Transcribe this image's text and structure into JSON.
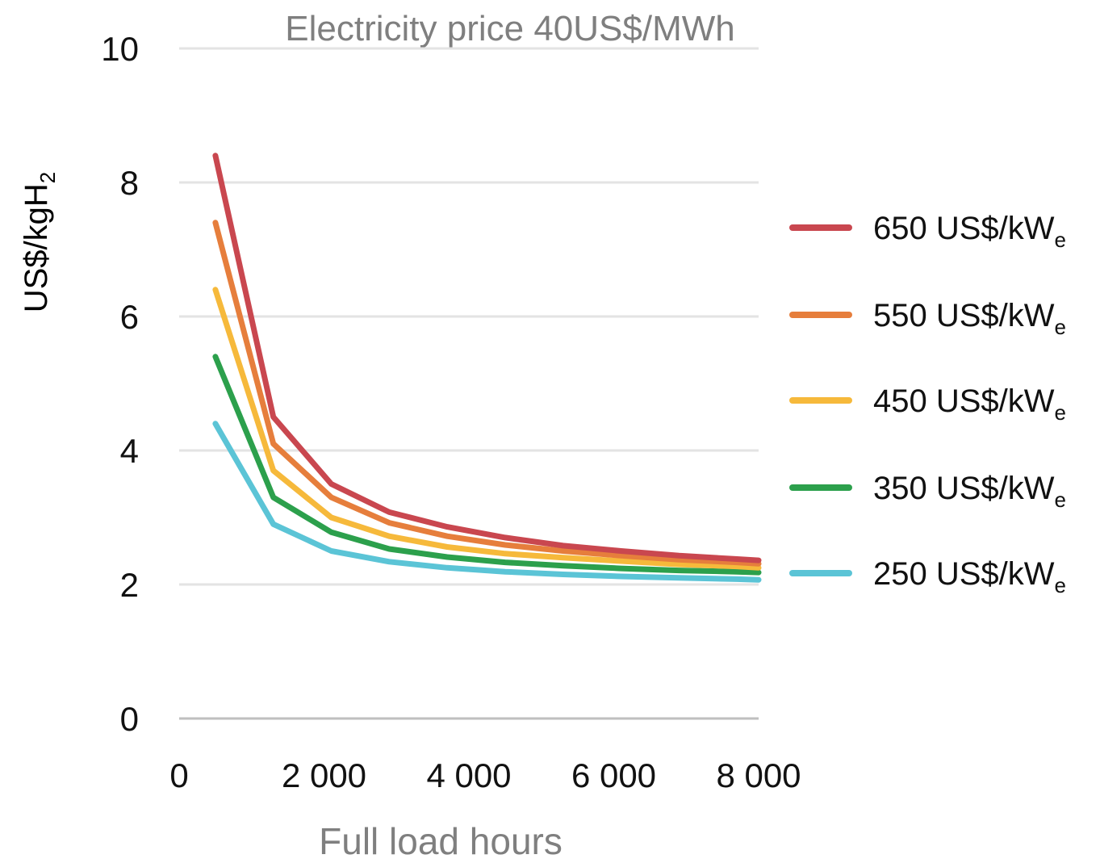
{
  "chart_data": {
    "type": "line",
    "title": "Electricity price 40US$/MWh",
    "xlabel": "Full load hours",
    "ylabel": "US$/kgH",
    "ylabel_sub": "2",
    "xlim": [
      0,
      8000
    ],
    "ylim": [
      0,
      10
    ],
    "xticks": [
      0,
      2000,
      4000,
      6000,
      8000
    ],
    "xtick_labels": [
      "0",
      "2 000",
      "4 000",
      "6 000",
      "8 000"
    ],
    "yticks": [
      0,
      2,
      4,
      6,
      8,
      10
    ],
    "ytick_labels": [
      "0",
      "2",
      "4",
      "6",
      "8",
      "10"
    ],
    "grid": true,
    "legend_position": "right",
    "x": [
      500,
      1300,
      2100,
      2900,
      3700,
      4500,
      5300,
      6100,
      6900,
      7700,
      8000
    ],
    "series": [
      {
        "name": "650 US$/kW",
        "name_sub": "e",
        "color": "#c9474f",
        "values": [
          8.4,
          4.5,
          3.5,
          3.08,
          2.86,
          2.7,
          2.58,
          2.5,
          2.43,
          2.38,
          2.36
        ]
      },
      {
        "name": "550 US$/kW",
        "name_sub": "e",
        "color": "#e67e3c",
        "values": [
          7.4,
          4.1,
          3.3,
          2.92,
          2.72,
          2.59,
          2.5,
          2.43,
          2.37,
          2.33,
          2.31
        ]
      },
      {
        "name": "450 US$/kW",
        "name_sub": "e",
        "color": "#f6b93b",
        "values": [
          6.4,
          3.7,
          3.0,
          2.72,
          2.56,
          2.46,
          2.4,
          2.35,
          2.3,
          2.27,
          2.25
        ]
      },
      {
        "name": "350 US$/kW",
        "name_sub": "e",
        "color": "#2ca04c",
        "values": [
          5.4,
          3.3,
          2.78,
          2.53,
          2.41,
          2.33,
          2.28,
          2.24,
          2.21,
          2.19,
          2.18
        ]
      },
      {
        "name": "250 US$/kW",
        "name_sub": "e",
        "color": "#5bc4d6",
        "values": [
          4.4,
          2.9,
          2.5,
          2.34,
          2.25,
          2.19,
          2.15,
          2.12,
          2.1,
          2.08,
          2.07
        ]
      }
    ]
  }
}
